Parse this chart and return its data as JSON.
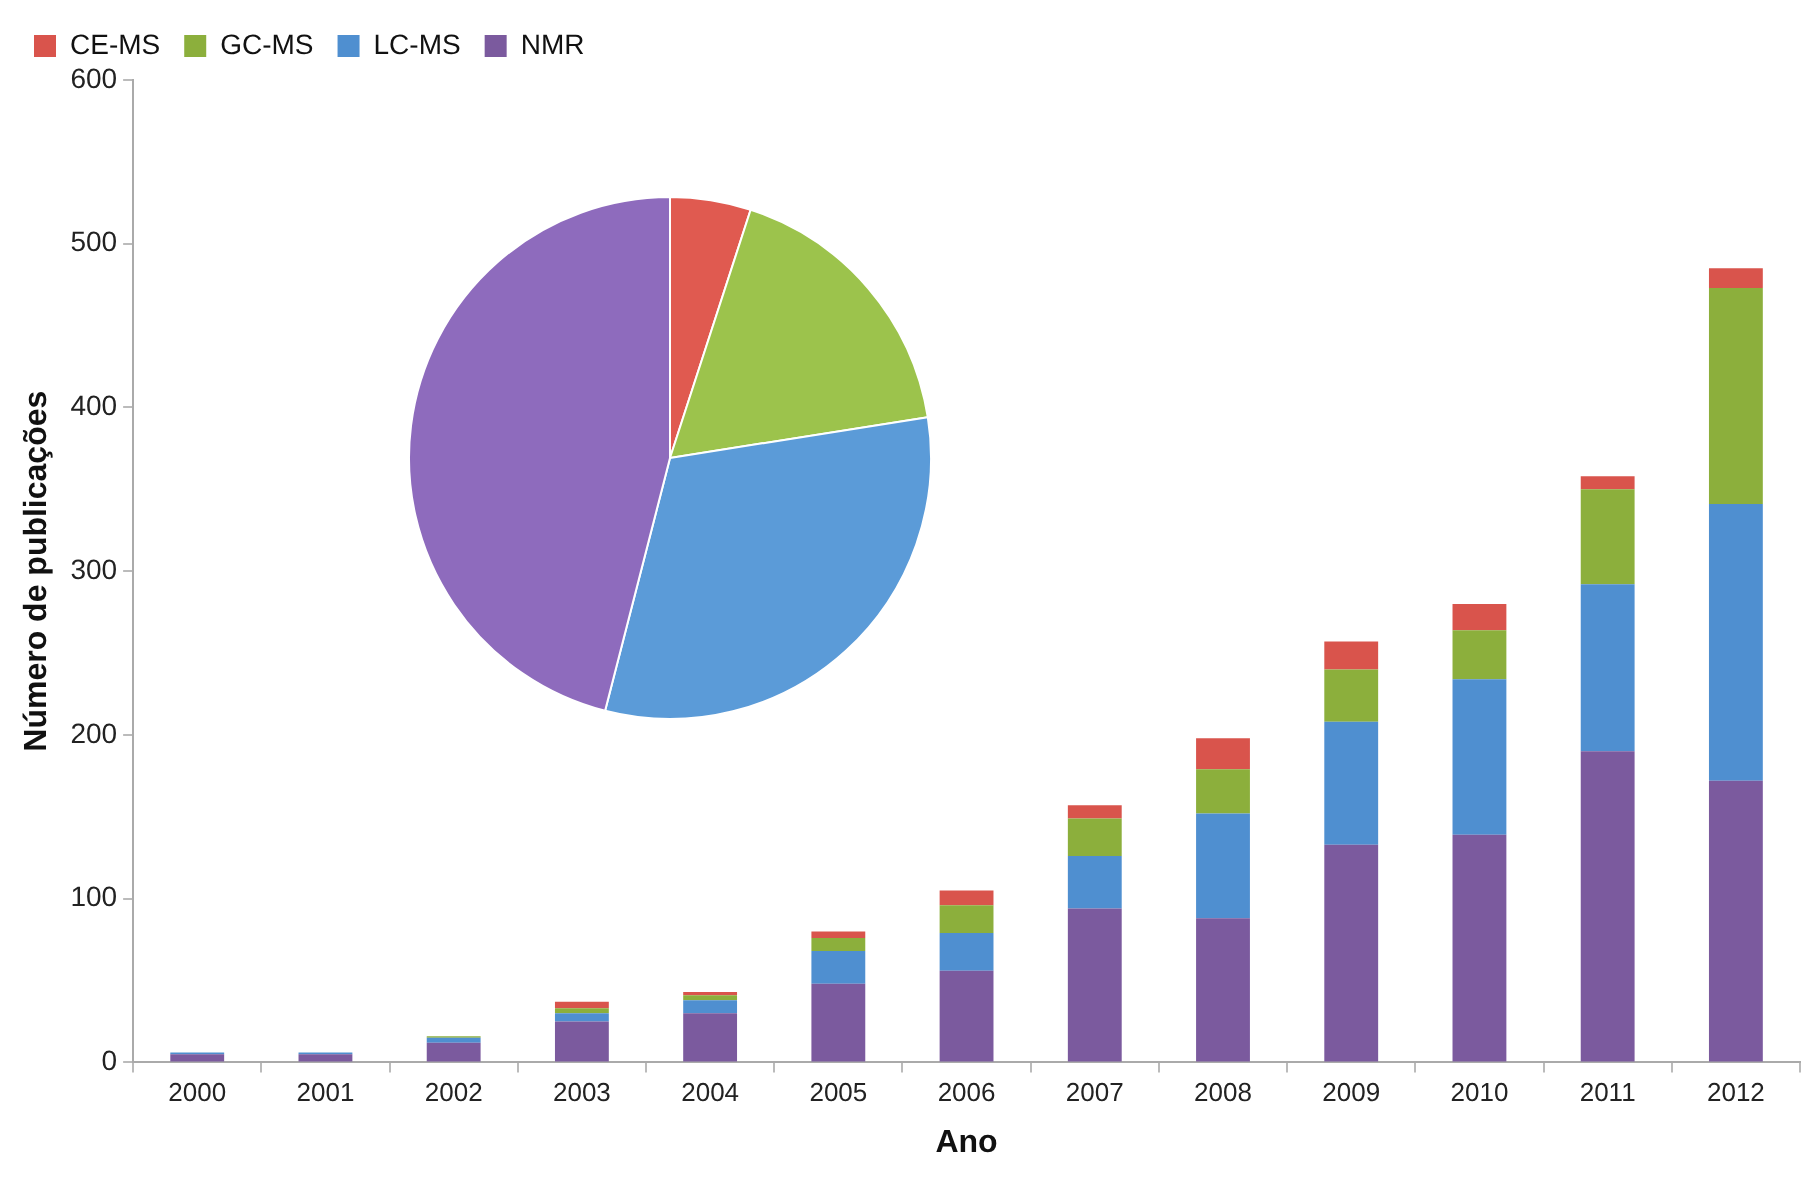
{
  "chart_data": [
    {
      "type": "bar",
      "xlabel": "Ano",
      "ylabel": "Número de publicações",
      "categories": [
        "2000",
        "2001",
        "2002",
        "2003",
        "2004",
        "2005",
        "2006",
        "2007",
        "2008",
        "2009",
        "2010",
        "2011",
        "2012"
      ],
      "stacked": true,
      "ylim": [
        0,
        600
      ],
      "yticks": [
        0,
        100,
        200,
        300,
        400,
        500,
        600
      ],
      "grid": false,
      "legend": "top left",
      "series": [
        {
          "name": "NMR",
          "color": "#7b5a9e",
          "values": [
            5,
            5,
            12,
            25,
            30,
            48,
            56,
            94,
            88,
            133,
            139,
            190,
            172
          ]
        },
        {
          "name": "LC-MS",
          "color": "#4f8fd0",
          "values": [
            1,
            1,
            3,
            5,
            8,
            20,
            23,
            32,
            64,
            75,
            95,
            102,
            169
          ]
        },
        {
          "name": "GC-MS",
          "color": "#8caf3c",
          "values": [
            0,
            0,
            1,
            3,
            3,
            8,
            17,
            23,
            27,
            32,
            30,
            58,
            132
          ]
        },
        {
          "name": "CE-MS",
          "color": "#d9544c",
          "values": [
            0,
            0,
            0,
            4,
            2,
            4,
            9,
            8,
            19,
            17,
            16,
            8,
            12
          ]
        }
      ]
    },
    {
      "type": "pie",
      "categories": [
        null,
        null,
        null,
        null
      ],
      "values": [
        5,
        17.5,
        31.5,
        46
      ],
      "colors": [
        "#e05a50",
        "#9cc34c",
        "#5b9bd8",
        "#8e6bbd"
      ]
    }
  ]
}
